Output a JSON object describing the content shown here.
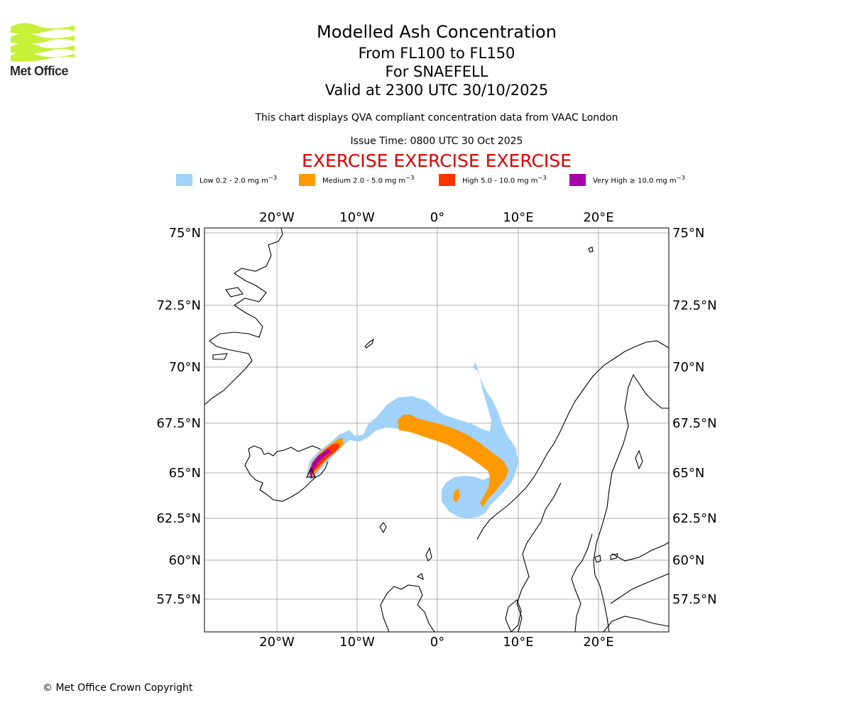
{
  "header": {
    "title": "Modelled Ash Concentration",
    "levels": "From FL100 to FL150",
    "volcano": "For SNAEFELL",
    "valid": "Valid at 2300 UTC 30/10/2025",
    "description": "This chart displays QVA compliant concentration data from VAAC London",
    "issue_time": "Issue Time: 0800 UTC 30 Oct 2025",
    "exercise": "EXERCISE EXERCISE EXERCISE"
  },
  "logo": {
    "text": "Met Office",
    "color": "#c8f038"
  },
  "legend": [
    {
      "label": "Low 0.2 - 2.0 mg m",
      "color": "#a0d2fa"
    },
    {
      "label": "Medium 2.0 - 5.0 mg m",
      "color": "#ff9900"
    },
    {
      "label": "High 5.0 - 10.0 mg m",
      "color": "#ff3300"
    },
    {
      "label": "Very High ≥ 10.0 mg m",
      "color": "#aa00aa"
    }
  ],
  "legend_unit_exp": "−3",
  "map": {
    "lon_labels": [
      "20°W",
      "10°W",
      "0°",
      "10°E",
      "20°E"
    ],
    "lat_labels": [
      "75°N",
      "72.5°N",
      "70°N",
      "67.5°N",
      "65°N",
      "62.5°N",
      "60°N",
      "57.5°N"
    ],
    "volcano_marker": "triangle"
  },
  "footer": {
    "copyright": "© Met Office Crown Copyright"
  }
}
